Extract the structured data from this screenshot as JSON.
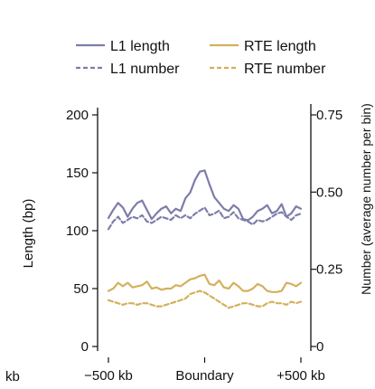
{
  "chart_data": {
    "type": "line",
    "title": "",
    "x": [
      -500,
      -475,
      -450,
      -425,
      -400,
      -375,
      -350,
      -325,
      -300,
      -275,
      -250,
      -225,
      -200,
      -175,
      -150,
      -125,
      -100,
      -75,
      -50,
      -25,
      0,
      25,
      50,
      75,
      100,
      125,
      150,
      175,
      200,
      225,
      250,
      275,
      300,
      325,
      350,
      375,
      400,
      425,
      450,
      475,
      500
    ],
    "x_ticks": [
      {
        "value": -500,
        "label": "−500 kb"
      },
      {
        "value": 0,
        "label": "Boundary"
      },
      {
        "value": 500,
        "label": "+500 kb"
      }
    ],
    "xlim": [
      -500,
      500
    ],
    "left_axis": {
      "label": "Length (bp)",
      "ylim": [
        0,
        200
      ],
      "ticks": [
        0,
        50,
        100,
        150,
        200
      ]
    },
    "right_axis": {
      "label": "Number (average number per bin)",
      "ylim": [
        0,
        0.75
      ],
      "ticks": [
        {
          "value": 0,
          "label": "0"
        },
        {
          "value": 0.25,
          "label": "0.25"
        },
        {
          "value": 0.5,
          "label": "0.50"
        },
        {
          "value": 0.75,
          "label": "0.75"
        }
      ]
    },
    "series": [
      {
        "name": "L1 length",
        "axis": "left",
        "style": "solid",
        "color": "#7d7dab",
        "values": [
          111,
          118,
          124,
          120,
          112,
          119,
          124,
          126,
          118,
          110,
          115,
          119,
          121,
          115,
          119,
          117,
          128,
          133,
          144,
          151,
          152,
          140,
          129,
          124,
          119,
          117,
          122,
          119,
          110,
          109,
          112,
          117,
          119,
          122,
          115,
          117,
          123,
          112,
          115,
          121,
          119
        ]
      },
      {
        "name": "L1 number",
        "axis": "right",
        "style": "dashed",
        "color": "#7d7dab",
        "values": [
          0.38,
          0.405,
          0.42,
          0.4,
          0.41,
          0.42,
          0.415,
          0.425,
          0.405,
          0.4,
          0.41,
          0.42,
          0.415,
          0.41,
          0.425,
          0.415,
          0.425,
          0.415,
          0.43,
          0.44,
          0.45,
          0.425,
          0.43,
          0.44,
          0.415,
          0.42,
          0.435,
          0.415,
          0.41,
          0.405,
          0.395,
          0.41,
          0.405,
          0.41,
          0.42,
          0.43,
          0.435,
          0.42,
          0.41,
          0.425,
          0.43
        ]
      },
      {
        "name": "RTE length",
        "axis": "left",
        "style": "solid",
        "color": "#d4b05c",
        "values": [
          48,
          50,
          55,
          52,
          55,
          51,
          52,
          53,
          56,
          50,
          51,
          49,
          50,
          50,
          53,
          52,
          55,
          58,
          59,
          61,
          62,
          54,
          53,
          57,
          51,
          50,
          55,
          52,
          48,
          48,
          50,
          54,
          52,
          48,
          47,
          47,
          48,
          55,
          54,
          52,
          55
        ]
      },
      {
        "name": "RTE number",
        "axis": "right",
        "style": "dashed",
        "color": "#d4b05c",
        "values": [
          0.15,
          0.145,
          0.14,
          0.135,
          0.14,
          0.14,
          0.135,
          0.14,
          0.14,
          0.135,
          0.13,
          0.13,
          0.135,
          0.14,
          0.145,
          0.15,
          0.155,
          0.17,
          0.175,
          0.18,
          0.175,
          0.165,
          0.155,
          0.145,
          0.135,
          0.125,
          0.13,
          0.135,
          0.14,
          0.14,
          0.135,
          0.13,
          0.13,
          0.14,
          0.145,
          0.14,
          0.14,
          0.135,
          0.145,
          0.14,
          0.145
        ]
      }
    ],
    "legend": {
      "placement": "top",
      "columns": 2
    },
    "edge_clipped_label": "kb"
  }
}
